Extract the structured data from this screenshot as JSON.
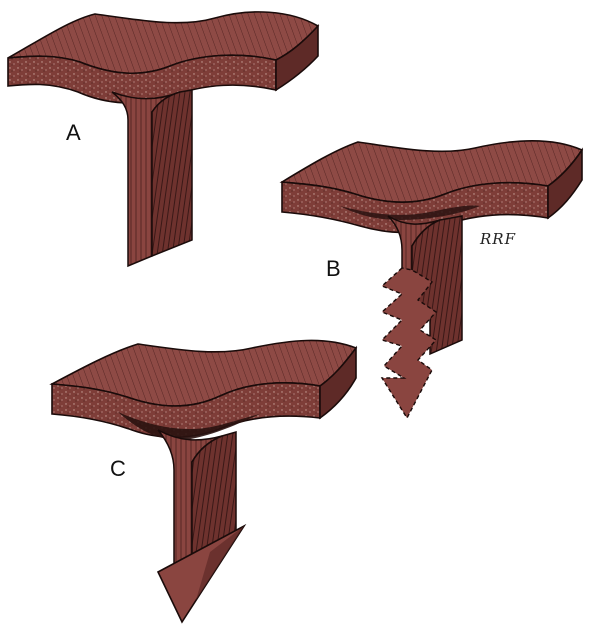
{
  "panels": [
    {
      "id": "A",
      "label": "A"
    },
    {
      "id": "B",
      "label": "B"
    },
    {
      "id": "C",
      "label": "C"
    }
  ],
  "signature": "RRF",
  "colors": {
    "muscle_face": "#8e4a45",
    "muscle_side": "#7a3a36",
    "muscle_dark": "#5e2a27",
    "muscle_top": "#9b5550",
    "fiber_line": "#3a1816",
    "outline": "#1a0b0a",
    "fascia_layer": "#b88a82",
    "hematoma": "#2a1210"
  }
}
